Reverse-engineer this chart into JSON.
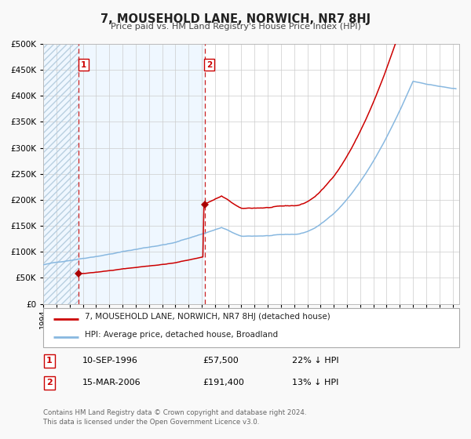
{
  "title": "7, MOUSEHOLD LANE, NORWICH, NR7 8HJ",
  "subtitle": "Price paid vs. HM Land Registry's House Price Index (HPI)",
  "legend_line1": "7, MOUSEHOLD LANE, NORWICH, NR7 8HJ (detached house)",
  "legend_line2": "HPI: Average price, detached house, Broadland",
  "marker1_date": 1996.69,
  "marker1_value": 57500,
  "marker2_date": 2006.21,
  "marker2_value": 191400,
  "vline1_x": 1996.69,
  "vline2_x": 2006.21,
  "note1_date": "10-SEP-1996",
  "note1_price": "£57,500",
  "note1_hpi": "22% ↓ HPI",
  "note2_date": "15-MAR-2006",
  "note2_price": "£191,400",
  "note2_hpi": "13% ↓ HPI",
  "ylim": [
    0,
    500000
  ],
  "xlim_start": 1994.0,
  "xlim_end": 2025.5,
  "hpi_line_color": "#88b8e0",
  "price_line_color": "#cc0000",
  "marker_color": "#aa0000",
  "footer": "Contains HM Land Registry data © Crown copyright and database right 2024.\nThis data is licensed under the Open Government Licence v3.0."
}
